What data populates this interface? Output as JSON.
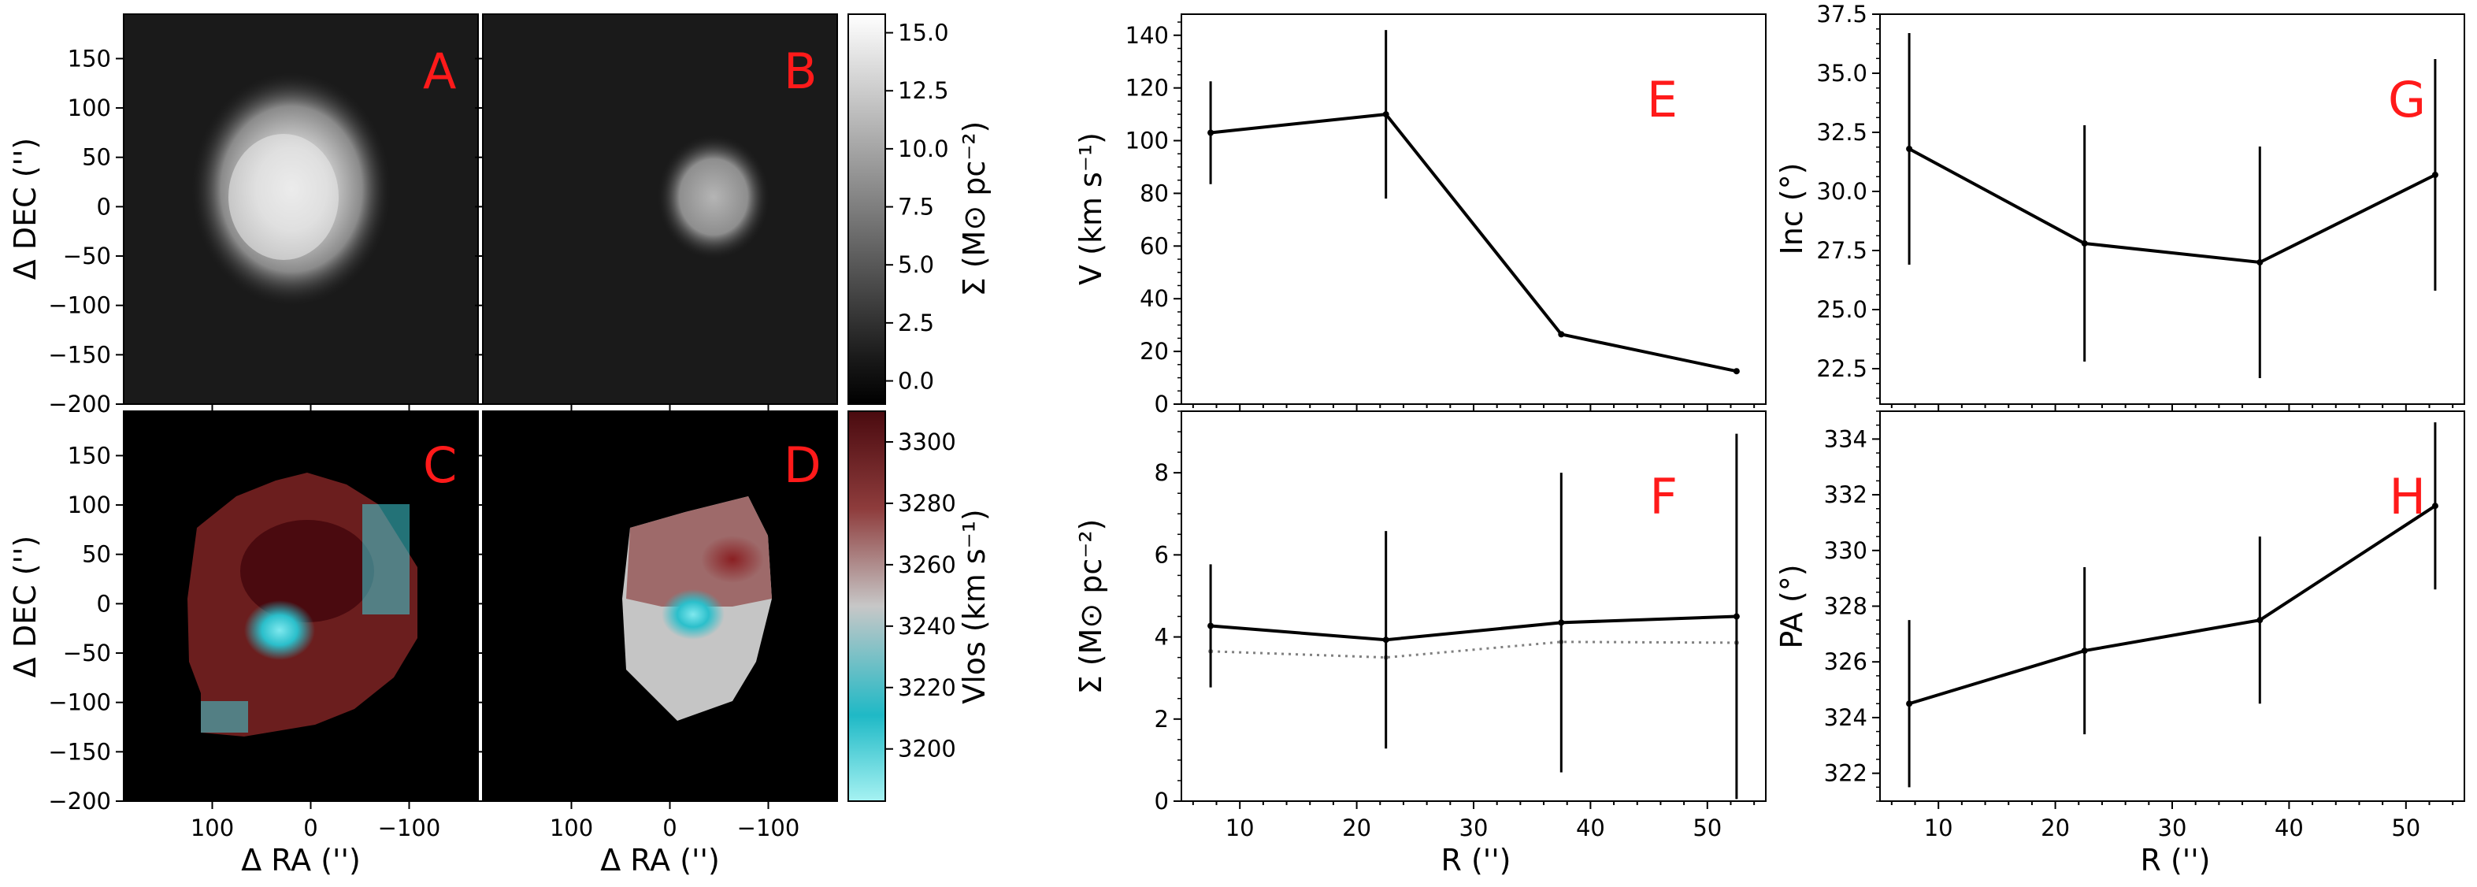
{
  "figure": {
    "map_xlabel": "Δ RA ('')",
    "map_ylabel": "Δ DEC ('')",
    "map_xticks": [
      "100",
      "0",
      "−100"
    ],
    "map_yticks": [
      "150",
      "100",
      "50",
      "0",
      "−50",
      "−100",
      "−150",
      "−200"
    ],
    "cbar_sigma": {
      "label": "Σ (M⊙ pc⁻²)",
      "ticks": [
        "15.0",
        "12.5",
        "10.0",
        "7.5",
        "5.0",
        "2.5",
        "0.0"
      ]
    },
    "cbar_vlos": {
      "label": "Vlos (km s⁻¹)",
      "ticks": [
        "3300",
        "3280",
        "3260",
        "3240",
        "3220",
        "3200"
      ]
    },
    "map_panels": [
      "A",
      "B",
      "C",
      "D"
    ],
    "profile_xlabel": "R ('')",
    "profile_xticks": [
      "10",
      "20",
      "30",
      "40",
      "50"
    ]
  },
  "chart_data": [
    {
      "panel": "E",
      "type": "line",
      "ylabel": "V (km s⁻¹)",
      "x": [
        7.5,
        22.5,
        37.5,
        52.5
      ],
      "y": [
        103,
        110,
        26.5,
        12.5
      ],
      "yerr": [
        19.5,
        32,
        0,
        0
      ],
      "xlim": [
        5,
        55
      ],
      "ylim": [
        0,
        148
      ],
      "yticks": [
        0,
        20,
        40,
        60,
        80,
        100,
        120,
        140
      ]
    },
    {
      "panel": "F",
      "type": "line",
      "ylabel": "Σ (M⊙ pc⁻²)",
      "x": [
        7.5,
        22.5,
        37.5,
        52.5
      ],
      "y": [
        4.27,
        3.93,
        4.35,
        4.5
      ],
      "yerr": [
        1.5,
        2.65,
        3.65,
        4.45
      ],
      "series": [
        {
          "style": "dotted",
          "color": "#808080",
          "x": [
            7.5,
            22.5,
            37.5,
            52.5
          ],
          "y": [
            3.65,
            3.5,
            3.88,
            3.86
          ]
        }
      ],
      "xlim": [
        5,
        55
      ],
      "ylim": [
        0,
        9.5
      ],
      "yticks": [
        0,
        2,
        4,
        6,
        8
      ]
    },
    {
      "panel": "G",
      "type": "line",
      "ylabel": "Inc (°)",
      "x": [
        7.5,
        22.5,
        37.5,
        52.5
      ],
      "y": [
        31.8,
        27.8,
        27.0,
        30.7
      ],
      "yerr": [
        4.9,
        5.0,
        4.9,
        4.9
      ],
      "xlim": [
        5,
        55
      ],
      "ylim": [
        21,
        37.5
      ],
      "yticks": [
        22.5,
        25.0,
        27.5,
        30.0,
        32.5,
        35.0,
        37.5
      ]
    },
    {
      "panel": "H",
      "type": "line",
      "ylabel": "PA (°)",
      "x": [
        7.5,
        22.5,
        37.5,
        52.5
      ],
      "y": [
        324.5,
        326.4,
        327.5,
        331.6
      ],
      "yerr": [
        3.0,
        3.0,
        3.0,
        3.0
      ],
      "xlim": [
        5,
        55
      ],
      "ylim": [
        321,
        335
      ],
      "yticks": [
        322,
        324,
        326,
        328,
        330,
        332,
        334
      ]
    }
  ]
}
